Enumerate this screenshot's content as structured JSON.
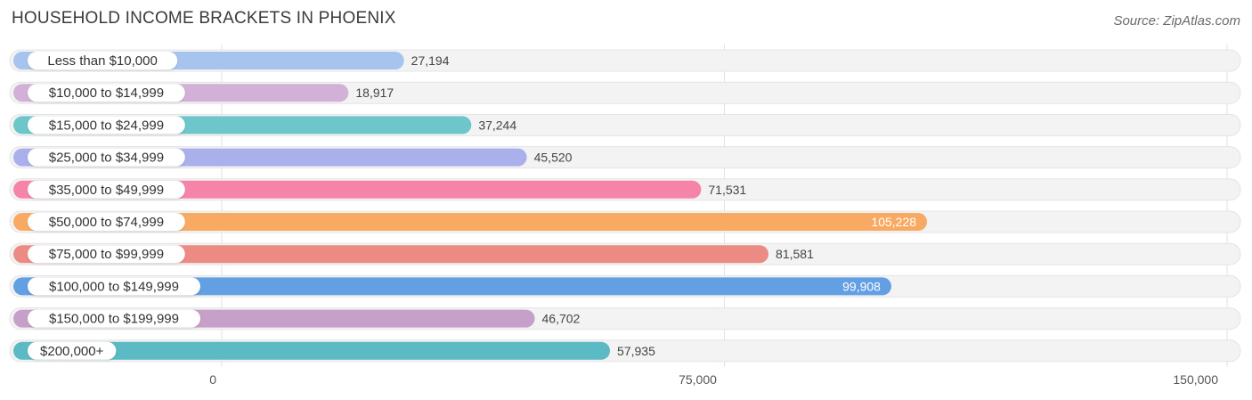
{
  "header": {
    "title": "HOUSEHOLD INCOME BRACKETS IN PHOENIX",
    "source": "Source: ZipAtlas.com"
  },
  "chart_data": {
    "type": "bar",
    "orientation": "horizontal",
    "title": "HOUSEHOLD INCOME BRACKETS IN PHOENIX",
    "categories": [
      "Less than $10,000",
      "$10,000 to $14,999",
      "$15,000 to $24,999",
      "$25,000 to $34,999",
      "$35,000 to $49,999",
      "$50,000 to $74,999",
      "$75,000 to $99,999",
      "$100,000 to $149,999",
      "$150,000 to $199,999",
      "$200,000+"
    ],
    "values": [
      27194,
      18917,
      37244,
      45520,
      71531,
      105228,
      81581,
      99908,
      46702,
      57935
    ],
    "value_labels": [
      "27,194",
      "18,917",
      "37,244",
      "45,520",
      "71,531",
      "105,228",
      "81,581",
      "99,908",
      "46,702",
      "57,935"
    ],
    "colors": [
      "#a7c4ee",
      "#d2b1d6",
      "#6cc6ca",
      "#aab0ec",
      "#f684a9",
      "#f9aa62",
      "#ec8b84",
      "#629fe3",
      "#c7a0ca",
      "#5bbac4"
    ],
    "xlim": [
      0,
      150000
    ],
    "xticks": [
      0,
      75000,
      150000
    ],
    "xtick_labels": [
      "0",
      "75,000",
      "150,000"
    ],
    "grid": true
  }
}
